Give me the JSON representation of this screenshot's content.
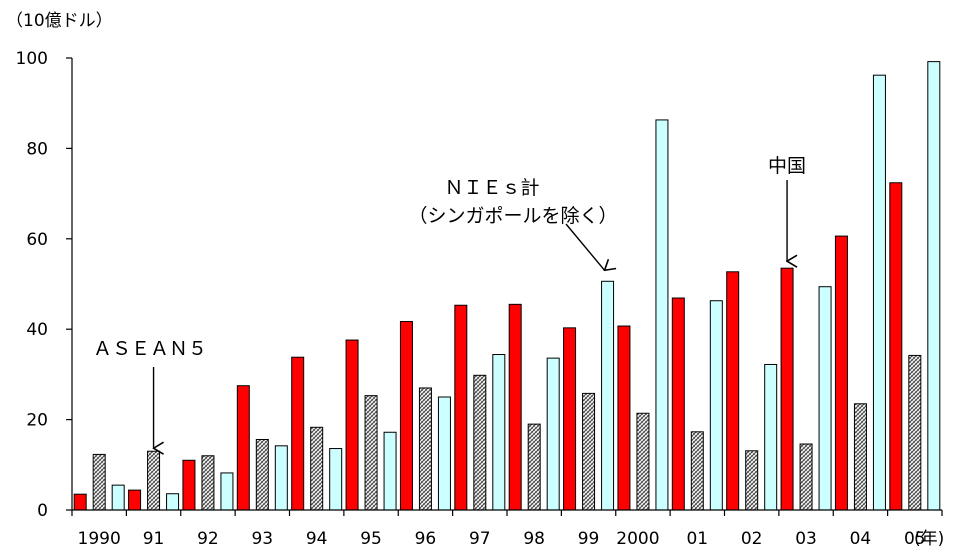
{
  "chart_data": {
    "type": "bar",
    "ylabel": "（10億ドル）",
    "x_unit": "(年)",
    "ylim": [
      0,
      100
    ],
    "yticks": [
      0,
      20,
      40,
      60,
      80,
      100
    ],
    "categories": [
      "1990",
      "91",
      "92",
      "93",
      "94",
      "95",
      "96",
      "97",
      "98",
      "99",
      "2000",
      "01",
      "02",
      "03",
      "04",
      "05"
    ],
    "series": [
      {
        "name": "中国",
        "pattern": "solid",
        "color": "#ff0000",
        "values": [
          3.5,
          4.4,
          11,
          27.5,
          33.8,
          37.6,
          41.7,
          45.3,
          45.5,
          40.3,
          40.7,
          46.9,
          52.7,
          53.5,
          60.6,
          72.4
        ]
      },
      {
        "name": "ASEAN5",
        "pattern": "hatched",
        "color": "#808080",
        "values": [
          12.3,
          13.0,
          12.0,
          15.6,
          18.3,
          25.3,
          27.0,
          29.8,
          19.0,
          25.8,
          21.4,
          17.3,
          13.1,
          14.6,
          23.5,
          34.2
        ]
      },
      {
        "name": "NIEs計（シンガポールを除く）",
        "pattern": "solid",
        "color": "#ccffff",
        "values": [
          5.5,
          3.6,
          8.2,
          14.2,
          13.6,
          17.2,
          25.0,
          34.4,
          33.6,
          50.6,
          86.3,
          46.3,
          32.2,
          49.4,
          96.2,
          99.2
        ]
      }
    ],
    "annotations": [
      {
        "text": "ＡＳＥＡＮ５",
        "category": "91",
        "series": "ASEAN5"
      },
      {
        "text": "ＮＩＥｓ計",
        "text2": "（シンガポールを除く）",
        "category": "99",
        "series": "NIEs計（シンガポールを除く）"
      },
      {
        "text": "中国",
        "category": "03",
        "series": "中国"
      }
    ]
  }
}
